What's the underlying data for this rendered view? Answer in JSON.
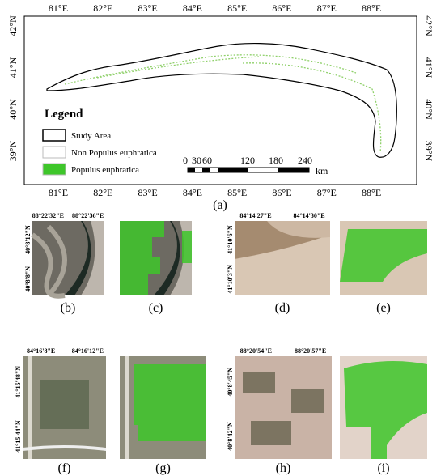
{
  "map": {
    "lon_labels": [
      "81°E",
      "82°E",
      "83°E",
      "84°E",
      "85°E",
      "86°E",
      "87°E",
      "88°E"
    ],
    "lat_labels": [
      "42°N",
      "41°N",
      "40°N",
      "39°N"
    ],
    "legend": {
      "title": "Legend",
      "items": [
        "Study Area",
        "Non Populus euphratica",
        "Populus euphratica"
      ]
    },
    "scale": {
      "ticks": [
        "0",
        "30",
        "60",
        "120",
        "180",
        "240"
      ],
      "unit": "km"
    },
    "caption": "(a)"
  },
  "panels": [
    {
      "caption": "(b)",
      "lon_labels": [
        "88°22'32\"E",
        "88°22'36\"E"
      ],
      "lat_labels": [
        "40°8'12\"N",
        "40°8'8\"N"
      ]
    },
    {
      "caption": "(c)"
    },
    {
      "caption": "(d)",
      "lon_labels": [
        "84°14'27\"E",
        "84°14'30\"E"
      ],
      "lat_labels": [
        "41°10'6\"N",
        "41°10'3\"N"
      ]
    },
    {
      "caption": "(e)"
    },
    {
      "caption": "(f)",
      "lon_labels": [
        "84°16'8\"E",
        "84°16'12\"E"
      ],
      "lat_labels": [
        "41°15'48\"N",
        "41°15'44\"N"
      ]
    },
    {
      "caption": "(g)"
    },
    {
      "caption": "(h)",
      "lon_labels": [
        "88°20'54\"E",
        "88°20'57\"E"
      ],
      "lat_labels": [
        "40°8'45\"N",
        "40°8'42\"N"
      ]
    },
    {
      "caption": "(i)"
    }
  ]
}
